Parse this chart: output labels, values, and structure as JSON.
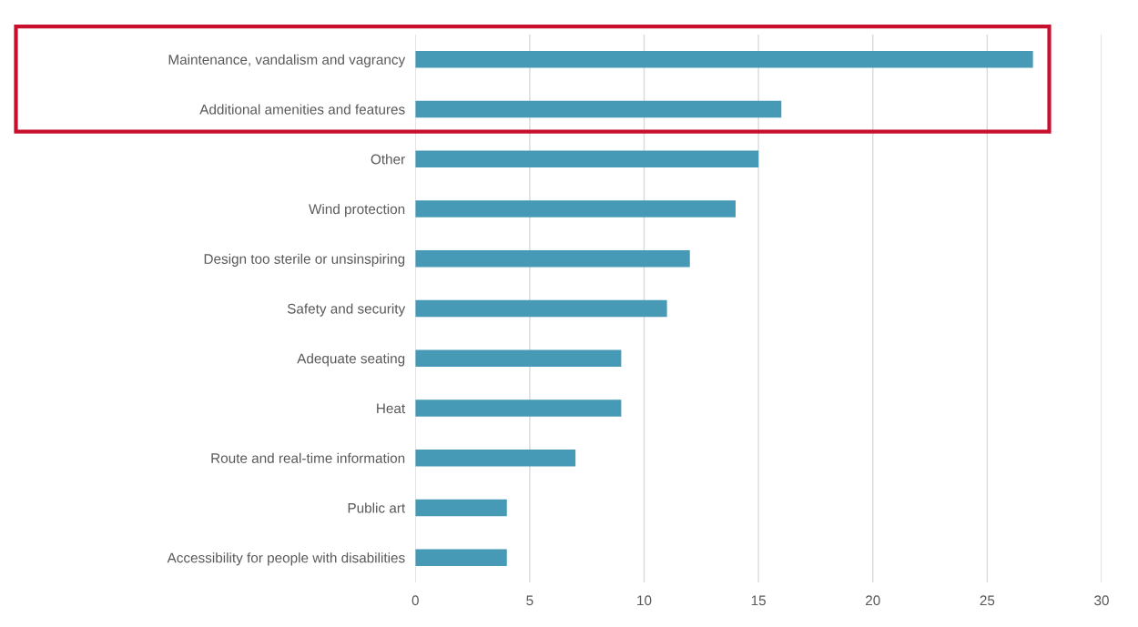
{
  "chart_data": {
    "type": "bar",
    "orientation": "horizontal",
    "categories": [
      "Maintenance, vandalism and vagrancy",
      "Additional amenities and features",
      "Other",
      "Wind protection",
      "Design too sterile or unsinspiring",
      "Safety and security",
      "Adequate seating",
      "Heat",
      "Route and real-time information",
      "Public art",
      "Accessibility for people with disabilities"
    ],
    "values": [
      27,
      16,
      15,
      14,
      12,
      11,
      9,
      9,
      7,
      4,
      4
    ],
    "color": "#479ab5",
    "xlim": [
      0,
      30
    ],
    "xticks": [
      0,
      5,
      10,
      15,
      20,
      25,
      30
    ],
    "grid": "x"
  }
}
